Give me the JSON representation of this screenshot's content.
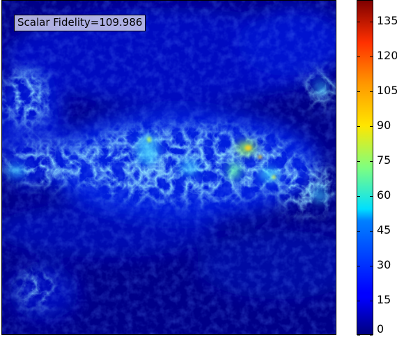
{
  "annotation": {
    "text": "Scalar Fidelity=109.986"
  },
  "colorbar": {
    "min": 0,
    "max": 144,
    "ticks": [
      0,
      15,
      30,
      45,
      60,
      75,
      90,
      105,
      120,
      135
    ],
    "tick_labels": [
      "0",
      "15",
      "30",
      "45",
      "60",
      "75",
      "90",
      "105",
      "120",
      "135"
    ],
    "colormap": "jet"
  },
  "chart_data": {
    "type": "heatmap",
    "title": "",
    "xlabel": "",
    "ylabel": "",
    "value_range": [
      0,
      144
    ],
    "annotation": "Scalar Fidelity=109.986",
    "colormap": "jet",
    "axis_ticks_visible": false
  }
}
